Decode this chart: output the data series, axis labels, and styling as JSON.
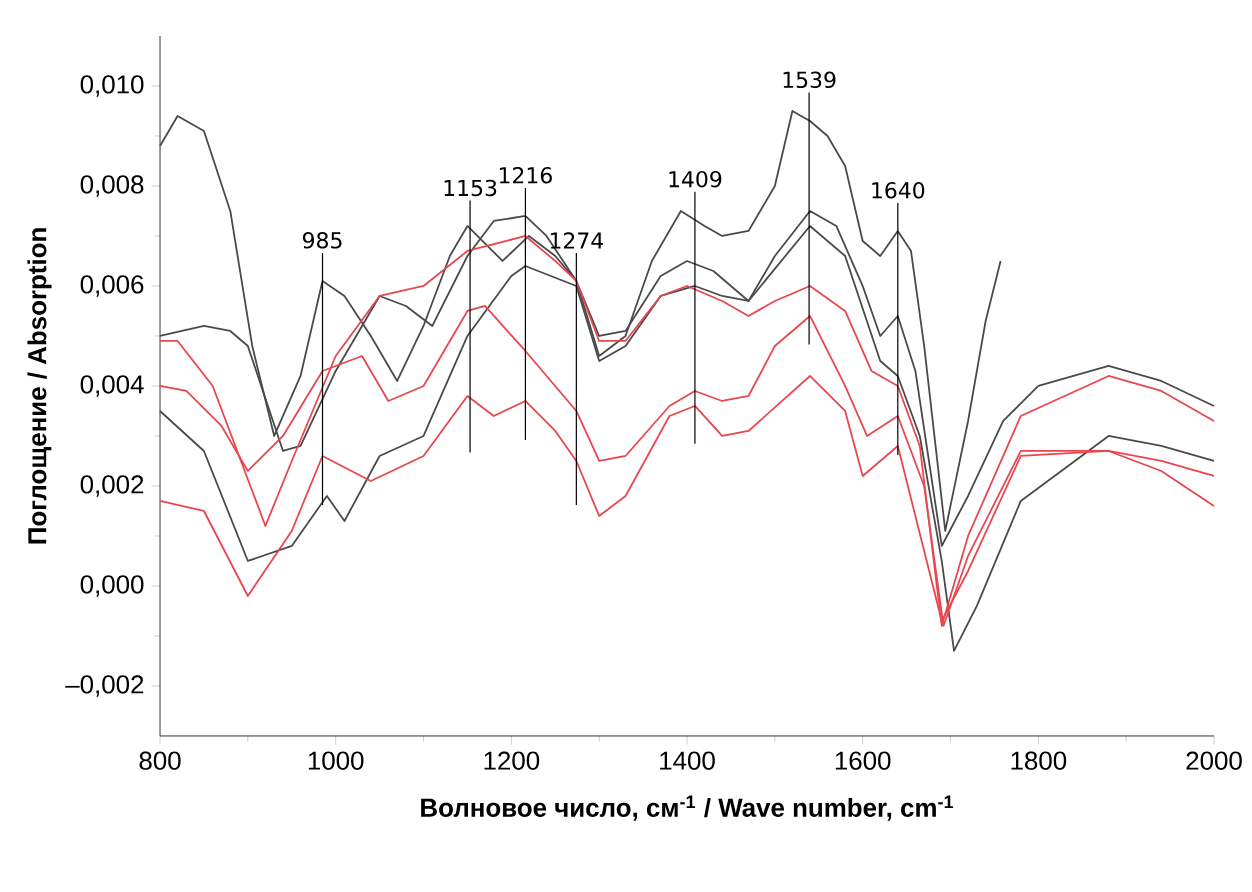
{
  "chart_data": {
    "type": "line",
    "xlabel": "Волновое число, см$^{-1}$ / Wave number, cm$^{-1}$",
    "ylabel": "Поглощение / Absorption",
    "xlim": [
      800,
      2000
    ],
    "xticks": [
      800,
      1000,
      1200,
      1400,
      1600,
      1800,
      2000
    ],
    "ylim": [
      -0.003,
      0.011
    ],
    "yticks": [
      {
        "value": -0.002,
        "label": "–0,002"
      },
      {
        "value": 0,
        "label": "0,000"
      },
      {
        "value": 0.002,
        "label": "0,002"
      },
      {
        "value": 0.004,
        "label": "0,004"
      },
      {
        "value": 0.006,
        "label": "0,006"
      },
      {
        "value": 0.008,
        "label": "0,008"
      },
      {
        "value": 0.01,
        "label": "0,010"
      }
    ],
    "series": [
      {
        "color": "#4a4a4a",
        "x": [
          800,
          820,
          850,
          880,
          905,
          930,
          960,
          985,
          1010,
          1040,
          1070,
          1100,
          1130,
          1150,
          1190,
          1220,
          1250,
          1274,
          1300,
          1330,
          1360,
          1393,
          1420,
          1440,
          1470,
          1500,
          1520,
          1540,
          1560,
          1580,
          1600,
          1620,
          1640,
          1655,
          1670,
          1694,
          1720,
          1740,
          1757
        ],
        "values": [
          0.0088,
          0.0094,
          0.0091,
          0.0075,
          0.0048,
          0.003,
          0.0042,
          0.0061,
          0.0058,
          0.005,
          0.0041,
          0.0052,
          0.0066,
          0.0072,
          0.0065,
          0.007,
          0.0066,
          0.0061,
          0.0046,
          0.005,
          0.0065,
          0.0075,
          0.0072,
          0.007,
          0.0071,
          0.008,
          0.0095,
          0.0093,
          0.009,
          0.0084,
          0.0069,
          0.0066,
          0.0071,
          0.0067,
          0.0048,
          0.0011,
          0.0033,
          0.0053,
          0.0065
        ]
      },
      {
        "color": "#4a4a4a",
        "x": [
          800,
          850,
          880,
          900,
          940,
          960,
          1000,
          1050,
          1080,
          1110,
          1150,
          1180,
          1216,
          1240,
          1274,
          1300,
          1330,
          1370,
          1400,
          1430,
          1470,
          1500,
          1540,
          1570,
          1600,
          1620,
          1640,
          1660,
          1690,
          1720,
          1760,
          1800,
          1880,
          1940,
          2000
        ],
        "values": [
          0.005,
          0.0052,
          0.0051,
          0.0048,
          0.0027,
          0.0028,
          0.0043,
          0.0058,
          0.0056,
          0.0052,
          0.0066,
          0.0073,
          0.0074,
          0.007,
          0.0061,
          0.005,
          0.0051,
          0.0062,
          0.0065,
          0.0063,
          0.0057,
          0.0066,
          0.0075,
          0.0072,
          0.006,
          0.005,
          0.0054,
          0.0043,
          0.0008,
          0.0018,
          0.0033,
          0.004,
          0.0044,
          0.0041,
          0.0036
        ]
      },
      {
        "color": "#4a4a4a",
        "x": [
          800,
          850,
          900,
          950,
          990,
          1010,
          1050,
          1100,
          1150,
          1200,
          1216,
          1274,
          1300,
          1330,
          1370,
          1409,
          1440,
          1470,
          1540,
          1580,
          1620,
          1640,
          1665,
          1690,
          1704,
          1730,
          1780,
          1880,
          1940,
          2000
        ],
        "values": [
          0.0035,
          0.0027,
          0.0005,
          0.0008,
          0.0018,
          0.0013,
          0.0026,
          0.003,
          0.005,
          0.0062,
          0.0064,
          0.006,
          0.0045,
          0.0048,
          0.0058,
          0.006,
          0.0058,
          0.0057,
          0.0072,
          0.0066,
          0.0045,
          0.0042,
          0.003,
          0.0005,
          -0.0013,
          -0.0004,
          0.0017,
          0.003,
          0.0028,
          0.0025
        ]
      },
      {
        "color": "#e8474f",
        "x": [
          800,
          820,
          860,
          920,
          950,
          1000,
          1050,
          1100,
          1150,
          1216,
          1250,
          1274,
          1300,
          1330,
          1370,
          1400,
          1440,
          1470,
          1500,
          1540,
          1580,
          1610,
          1640,
          1665,
          1690,
          1720,
          1780,
          1880,
          1940,
          2000
        ],
        "values": [
          0.0049,
          0.0049,
          0.004,
          0.0012,
          0.0025,
          0.0046,
          0.0058,
          0.006,
          0.0067,
          0.007,
          0.0065,
          0.0061,
          0.0049,
          0.0049,
          0.0058,
          0.006,
          0.0057,
          0.0054,
          0.0057,
          0.006,
          0.0055,
          0.0043,
          0.004,
          0.0028,
          -0.0008,
          0.001,
          0.0034,
          0.0042,
          0.0039,
          0.0033
        ]
      },
      {
        "color": "#e8474f",
        "x": [
          800,
          830,
          870,
          900,
          940,
          985,
          1030,
          1060,
          1100,
          1150,
          1170,
          1216,
          1274,
          1300,
          1330,
          1380,
          1409,
          1440,
          1470,
          1500,
          1540,
          1580,
          1605,
          1640,
          1670,
          1692,
          1720,
          1780,
          1880,
          1940,
          2000
        ],
        "values": [
          0.004,
          0.0039,
          0.0032,
          0.0023,
          0.003,
          0.0043,
          0.0046,
          0.0037,
          0.004,
          0.0055,
          0.0056,
          0.0047,
          0.0035,
          0.0025,
          0.0026,
          0.0036,
          0.0039,
          0.0037,
          0.0038,
          0.0048,
          0.0054,
          0.004,
          0.003,
          0.0034,
          0.002,
          -0.0008,
          0.0006,
          0.0027,
          0.0027,
          0.0023,
          0.0016
        ]
      },
      {
        "color": "#e8474f",
        "x": [
          800,
          850,
          900,
          950,
          985,
          1040,
          1100,
          1150,
          1180,
          1216,
          1250,
          1274,
          1300,
          1330,
          1380,
          1409,
          1440,
          1470,
          1540,
          1580,
          1600,
          1640,
          1690,
          1720,
          1780,
          1880,
          1940,
          2000
        ],
        "values": [
          0.0017,
          0.0015,
          -0.0002,
          0.0011,
          0.0026,
          0.0021,
          0.0026,
          0.0038,
          0.0034,
          0.0037,
          0.0031,
          0.0025,
          0.0014,
          0.0018,
          0.0034,
          0.0036,
          0.003,
          0.0031,
          0.0042,
          0.0035,
          0.0022,
          0.0028,
          -0.0007,
          0.0003,
          0.0026,
          0.0027,
          0.0025,
          0.0022
        ]
      }
    ],
    "ref_lines": [
      {
        "axis": "x",
        "value": 985,
        "label": "985"
      },
      {
        "axis": "x",
        "value": 1153,
        "label": "1153"
      },
      {
        "axis": "x",
        "value": 1216,
        "label": "1216"
      },
      {
        "axis": "x",
        "value": 1274,
        "label": "1274"
      },
      {
        "axis": "x",
        "value": 1409,
        "label": "1409"
      },
      {
        "axis": "x",
        "value": 1539,
        "label": "1539"
      },
      {
        "axis": "x",
        "value": 1640,
        "label": "1640"
      }
    ]
  }
}
